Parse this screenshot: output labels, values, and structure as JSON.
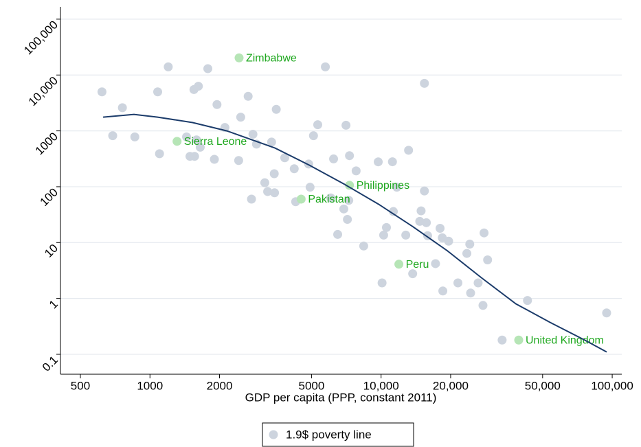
{
  "chart_data": {
    "type": "scatter",
    "x_label": "GDP per capita (PPP, constant 2011)",
    "log_x": true,
    "log_y": true,
    "grid": true,
    "legend_position": "bottom",
    "xlim": [
      410,
      110000
    ],
    "ylim": [
      0.044,
      166000
    ],
    "xticks": [
      500,
      1000,
      2000,
      5000,
      {
        "value": 10000,
        "label": "10,000"
      },
      {
        "value": 20000,
        "label": "20,000"
      },
      {
        "value": 50000,
        "label": "50,000"
      },
      {
        "value": 100000,
        "label": "100,000"
      }
    ],
    "yticks": [
      {
        "value": 100000,
        "label": "100,000"
      },
      {
        "value": 10000,
        "label": "10,000"
      },
      1000,
      100,
      10,
      1,
      0.1
    ],
    "series": [
      {
        "name": "1.9$ poverty line",
        "color": "#cdd4de",
        "x": [
          620,
          760,
          690,
          860,
          1080,
          1100,
          1200,
          1440,
          1490,
          1560,
          1550,
          1620,
          1590,
          1650,
          1780,
          1900,
          1950,
          2110,
          2420,
          2470,
          2660,
          2790,
          2750,
          2890,
          3140,
          3230,
          3360,
          3450,
          3460,
          3520,
          3830,
          4210,
          4270,
          4860,
          4930,
          5100,
          5320,
          5740,
          6060,
          6230,
          6490,
          6900,
          7050,
          7150,
          7250,
          7300,
          7800,
          8410,
          9720,
          10100,
          10260,
          10550,
          11200,
          11300,
          11700,
          12790,
          13150,
          13700,
          14700,
          14900,
          15400,
          15400,
          15700,
          15900,
          17200,
          18000,
          18400,
          18500,
          19600,
          21500,
          23500,
          24200,
          24400,
          26300,
          27600,
          27900,
          28900,
          33400,
          43000,
          94600
        ],
        "values": [
          5000,
          2600,
          820,
          780,
          5000,
          390,
          14000,
          780,
          350,
          350,
          5500,
          6300,
          690,
          510,
          13000,
          310,
          2960,
          1150,
          295,
          1760,
          4160,
          870,
          60,
          580,
          118,
          82,
          630,
          171,
          78,
          2430,
          330,
          210,
          54,
          255,
          98,
          820,
          1290,
          14000,
          63,
          315,
          14,
          40,
          1260,
          26,
          57,
          360,
          192,
          8.7,
          279,
          1.9,
          13.6,
          18.6,
          280,
          36,
          98,
          13.6,
          450,
          2.77,
          24,
          37,
          7100,
          84,
          22.7,
          13.3,
          4.2,
          18,
          12.2,
          1.36,
          10.6,
          1.9,
          6.4,
          9.4,
          1.25,
          1.9,
          0.75,
          14.9,
          4.9,
          0.18,
          0.92,
          0.55
        ]
      }
    ],
    "highlights": {
      "color": "#b6e5b6",
      "labels": [
        "Zimbabwe",
        "Sierra Leone",
        "Pakistan",
        "Philippines",
        "Peru",
        "United Kingdom"
      ],
      "x": [
        2430,
        1310,
        4510,
        7300,
        11940,
        39400
      ],
      "values": [
        20300,
        650,
        60,
        106,
        4.1,
        0.18
      ]
    },
    "fit": {
      "color": "#1b3b6a",
      "x": [
        627,
        853,
        1080,
        1530,
        2150,
        3480,
        4900,
        6900,
        9730,
        13700,
        19300,
        27200,
        38300,
        54000,
        76000,
        94600
      ],
      "values": [
        1760,
        1970,
        1760,
        1410,
        1000,
        492,
        243,
        112,
        49,
        19.4,
        7.2,
        2.34,
        0.8,
        0.37,
        0.18,
        0.11
      ]
    }
  }
}
